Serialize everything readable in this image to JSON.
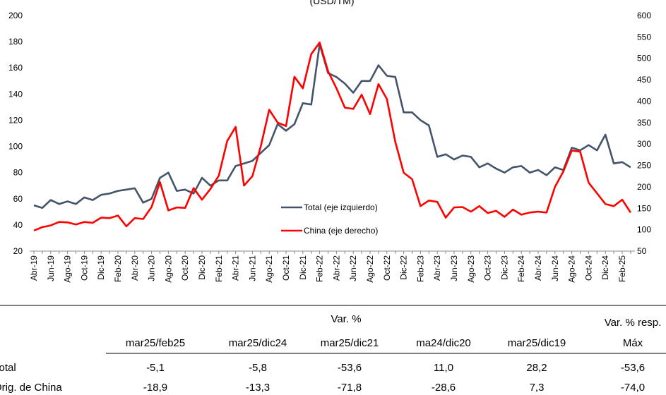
{
  "chart_data": {
    "type": "line",
    "title": "(USD/TM)",
    "categories": [
      "Abr-19",
      null,
      "Jun-19",
      null,
      "Ago-19",
      null,
      "Oct-19",
      null,
      "Dic-19",
      null,
      "Feb-20",
      null,
      "Abr-20",
      null,
      "Jun-20",
      null,
      "Ago-20",
      null,
      "Oct-20",
      null,
      "Dic-20",
      null,
      "Feb-21",
      null,
      "Abr-21",
      null,
      "Jun-21",
      null,
      "Ago-21",
      null,
      "Oct-21",
      null,
      "Dic-21",
      null,
      "Feb-22",
      null,
      "Abr-22",
      null,
      "Jun-22",
      null,
      "Ago-22",
      null,
      "Oct-22",
      null,
      "Dic-22",
      null,
      "Feb-23",
      null,
      "Abr-23",
      null,
      "Jun-23",
      null,
      "Ago-23",
      null,
      "Oct-23",
      null,
      "Dic-23",
      null,
      "Feb-24",
      null,
      "Abr-24",
      null,
      "Jun-24",
      null,
      "Ago-24",
      null,
      "Oct-24",
      null,
      "Dic-24",
      null,
      "Feb-25",
      null
    ],
    "series": [
      {
        "name": "Total (eje izquierdo)",
        "color": "#44546a",
        "axis": "y",
        "values": [
          55,
          53,
          59,
          56,
          58,
          56,
          61,
          59,
          63,
          64,
          66,
          67,
          68,
          57,
          60,
          76,
          80,
          66,
          67,
          64,
          76,
          70,
          74,
          74,
          85,
          87,
          89,
          95,
          101,
          117,
          112,
          117,
          133,
          132,
          178,
          156,
          153,
          148,
          141,
          150,
          150,
          162,
          154,
          153,
          126,
          126,
          120,
          116,
          92,
          94,
          90,
          93,
          92,
          84,
          87,
          83,
          80,
          84,
          85,
          80,
          82,
          78,
          84,
          82,
          99,
          97,
          101,
          97,
          109,
          87,
          88,
          84
        ]
      },
      {
        "name": "China (eje derecho)",
        "color": "#ff0000",
        "axis": "y2",
        "values": [
          98,
          106,
          110,
          118,
          117,
          112,
          118,
          116,
          128,
          127,
          133,
          108,
          127,
          125,
          153,
          211,
          145,
          152,
          151,
          197,
          170,
          195,
          226,
          307,
          340,
          203,
          225,
          295,
          380,
          350,
          342,
          457,
          430,
          510,
          537,
          470,
          430,
          385,
          382,
          415,
          370,
          440,
          405,
          305,
          233,
          218,
          155,
          168,
          165,
          128,
          152,
          153,
          142,
          155,
          139,
          144,
          130,
          147,
          135,
          140,
          142,
          140,
          200,
          236,
          285,
          282,
          210,
          185,
          160,
          155,
          170,
          140
        ]
      }
    ],
    "ylim": [
      20,
      200
    ],
    "yticks": [
      20,
      40,
      60,
      80,
      100,
      120,
      140,
      160,
      180,
      200
    ],
    "y2lim": [
      50,
      600
    ],
    "y2ticks": [
      50,
      100,
      150,
      200,
      250,
      300,
      350,
      400,
      450,
      500,
      550,
      600
    ]
  },
  "table": {
    "group_header": "Var. %",
    "last_header": [
      "Var. % resp.",
      "Máx"
    ],
    "columns": [
      "mar25/feb25",
      "mar25/dic24",
      "mar25/dic21",
      "ma24/dic20",
      "mar25/dic19"
    ],
    "rows": [
      {
        "label": "Total",
        "values": [
          "-5,1",
          "-5,8",
          "-53,6",
          "11,0",
          "28,2",
          "-53,6"
        ]
      },
      {
        "label": "Orig. de China",
        "values": [
          "-18,9",
          "-13,3",
          "-71,8",
          "-28,6",
          "7,3",
          "-74,0"
        ]
      }
    ]
  }
}
